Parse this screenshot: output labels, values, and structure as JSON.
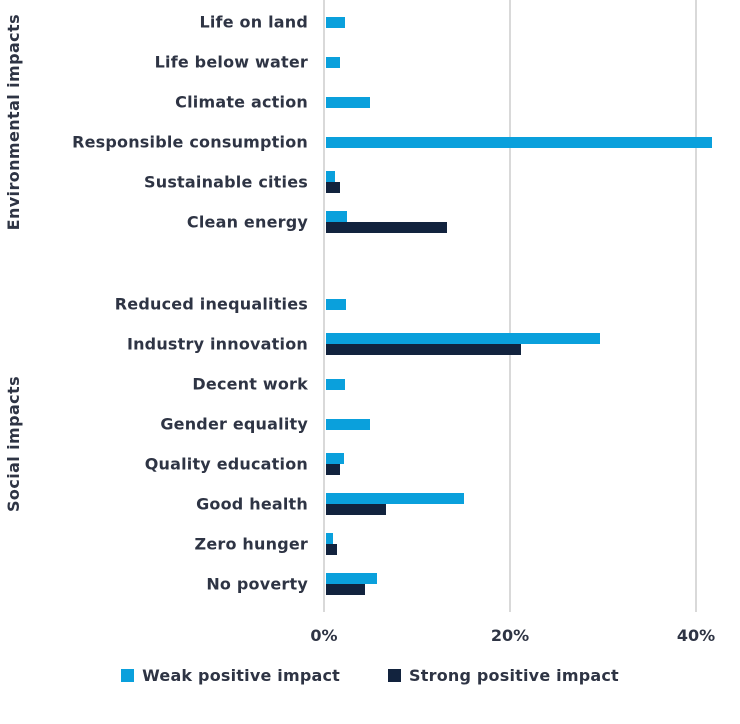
{
  "chart_data": {
    "type": "bar",
    "orientation": "horizontal",
    "title": "",
    "xlabel": "",
    "ylabel": "",
    "unit": "%",
    "x_ticks": [
      "0%",
      "20%",
      "40%"
    ],
    "x_tick_values": [
      0,
      20,
      40
    ],
    "xlim": [
      0,
      44.5
    ],
    "grid": "vertical-lines",
    "legend_position": "bottom-center",
    "colors": {
      "weak": "#0aa0dc",
      "strong": "#12233e",
      "grid": "#d9d9d9",
      "text": "#2e3444"
    },
    "series_names": [
      "Weak positive impact",
      "Strong positive impact"
    ],
    "groups": [
      {
        "label": "Environmental impacts",
        "rows": [
          {
            "category": "Life on land",
            "weak": 2.0,
            "strong": 0
          },
          {
            "category": "Life below water",
            "weak": 1.5,
            "strong": 0
          },
          {
            "category": "Climate action",
            "weak": 4.7,
            "strong": 0
          },
          {
            "category": "Responsible consumption",
            "weak": 41.5,
            "strong": 0
          },
          {
            "category": "Sustainable cities",
            "weak": 1.0,
            "strong": 1.5
          },
          {
            "category": "Clean energy",
            "weak": 2.3,
            "strong": 13.0
          }
        ]
      },
      {
        "label": "Social impacts",
        "rows": [
          {
            "category": "Reduced inequalities",
            "weak": 2.2,
            "strong": 0
          },
          {
            "category": "Industry innovation",
            "weak": 29.5,
            "strong": 21.0
          },
          {
            "category": "Decent work",
            "weak": 2.0,
            "strong": 0
          },
          {
            "category": "Gender equality",
            "weak": 4.7,
            "strong": 0
          },
          {
            "category": "Quality education",
            "weak": 1.9,
            "strong": 1.5
          },
          {
            "category": "Good health",
            "weak": 14.8,
            "strong": 6.5
          },
          {
            "category": "Zero hunger",
            "weak": 0.7,
            "strong": 1.2
          },
          {
            "category": "No poverty",
            "weak": 5.5,
            "strong": 4.2
          }
        ]
      }
    ],
    "legend": [
      {
        "label": "Weak positive impact",
        "color": "#0aa0dc",
        "series_key": "weak"
      },
      {
        "label": "Strong positive impact",
        "color": "#12233e",
        "series_key": "strong"
      }
    ]
  }
}
